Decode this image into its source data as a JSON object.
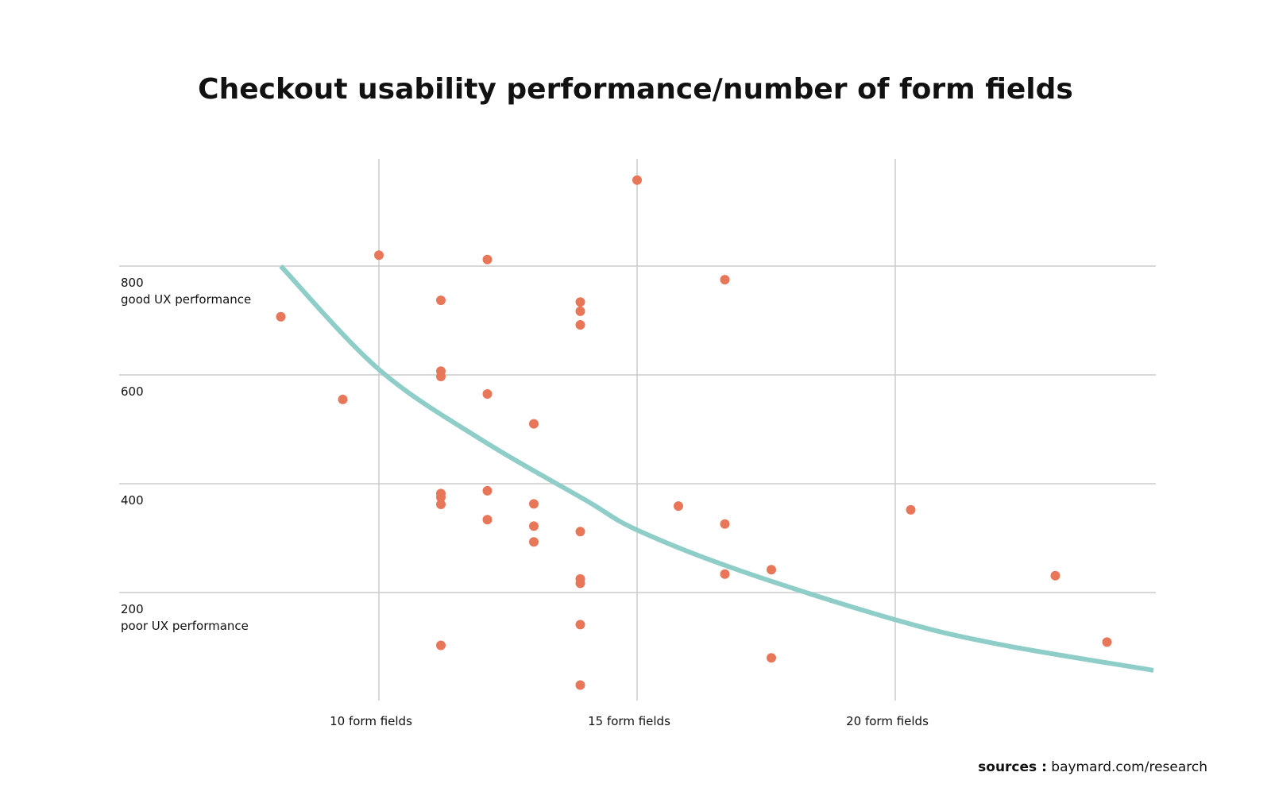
{
  "chart_data": {
    "type": "scatter",
    "title": "Checkout usability performance/number of form fields",
    "xlabel": "",
    "ylabel": "",
    "xlim": [
      5,
      25
    ],
    "ylim": [
      20,
      1000
    ],
    "x_ticks": [
      {
        "value": 10,
        "label": "10 form fields"
      },
      {
        "value": 15,
        "label": "15 form fields"
      },
      {
        "value": 20,
        "label": "20 form fields"
      }
    ],
    "y_ticks": [
      {
        "value": 800,
        "label": "800",
        "sublabel": "good UX performance"
      },
      {
        "value": 600,
        "label": "600",
        "sublabel": ""
      },
      {
        "value": 400,
        "label": "400",
        "sublabel": ""
      },
      {
        "value": 200,
        "label": "200",
        "sublabel": "poor UX performance"
      }
    ],
    "grid": true,
    "points": [
      {
        "x": 8.1,
        "y": 707
      },
      {
        "x": 9.3,
        "y": 555
      },
      {
        "x": 10.0,
        "y": 820
      },
      {
        "x": 11.2,
        "y": 737
      },
      {
        "x": 11.2,
        "y": 607
      },
      {
        "x": 11.2,
        "y": 597
      },
      {
        "x": 11.2,
        "y": 382
      },
      {
        "x": 11.2,
        "y": 375
      },
      {
        "x": 11.2,
        "y": 362
      },
      {
        "x": 11.2,
        "y": 103
      },
      {
        "x": 12.1,
        "y": 812
      },
      {
        "x": 12.1,
        "y": 565
      },
      {
        "x": 12.1,
        "y": 387
      },
      {
        "x": 12.1,
        "y": 334
      },
      {
        "x": 13.0,
        "y": 510
      },
      {
        "x": 13.0,
        "y": 363
      },
      {
        "x": 13.0,
        "y": 322
      },
      {
        "x": 13.0,
        "y": 293
      },
      {
        "x": 13.9,
        "y": 734
      },
      {
        "x": 13.9,
        "y": 717
      },
      {
        "x": 13.9,
        "y": 692
      },
      {
        "x": 13.9,
        "y": 312
      },
      {
        "x": 13.9,
        "y": 225
      },
      {
        "x": 13.9,
        "y": 217
      },
      {
        "x": 13.9,
        "y": 141
      },
      {
        "x": 13.9,
        "y": 30
      },
      {
        "x": 15.0,
        "y": 958
      },
      {
        "x": 15.8,
        "y": 359
      },
      {
        "x": 16.7,
        "y": 775
      },
      {
        "x": 16.7,
        "y": 326
      },
      {
        "x": 16.7,
        "y": 234
      },
      {
        "x": 17.6,
        "y": 242
      },
      {
        "x": 17.6,
        "y": 80
      },
      {
        "x": 20.3,
        "y": 352
      },
      {
        "x": 23.1,
        "y": 231
      },
      {
        "x": 24.1,
        "y": 109
      }
    ],
    "trendline": {
      "type": "exponential",
      "points": [
        {
          "x": 8.1,
          "y": 800
        },
        {
          "x": 10,
          "y": 610
        },
        {
          "x": 12,
          "y": 480
        },
        {
          "x": 14,
          "y": 370
        },
        {
          "x": 15,
          "y": 315
        },
        {
          "x": 17,
          "y": 240
        },
        {
          "x": 20,
          "y": 150
        },
        {
          "x": 22,
          "y": 105
        },
        {
          "x": 25,
          "y": 57
        }
      ]
    },
    "colors": {
      "points": "#e8775a",
      "trendline": "#8fcdc8",
      "grid": "#cccccc"
    }
  },
  "source": {
    "label": "sources :",
    "text": "baymard.com/research"
  }
}
